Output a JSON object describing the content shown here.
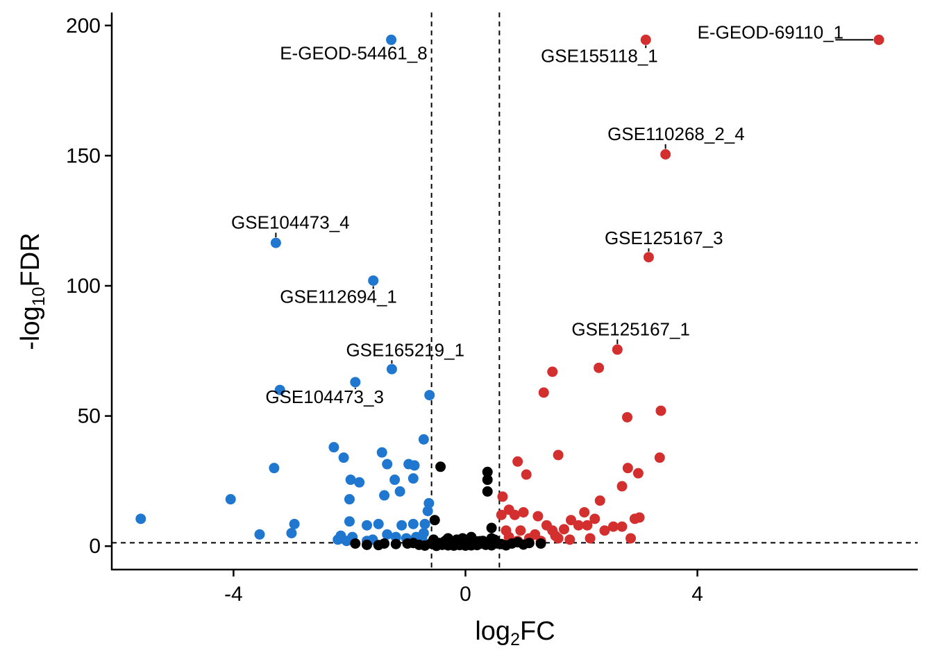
{
  "chart_data": {
    "type": "scatter",
    "xlabel_base": "log",
    "xlabel_sub": "2",
    "xlabel_tail": "FC",
    "ylabel_lead": "-log",
    "ylabel_sub": "10",
    "ylabel_tail": "FDR",
    "xlim": [
      -6.1,
      7.8
    ],
    "ylim": [
      -9,
      205
    ],
    "x_ticks": [
      -4,
      0,
      4
    ],
    "x_tick_labels": [
      "-4",
      "0",
      "4"
    ],
    "y_ticks": [
      0,
      50,
      100,
      150,
      200
    ],
    "y_tick_labels": [
      "0",
      "50",
      "100",
      "150",
      "200"
    ],
    "vlines": [
      -0.585,
      0.585
    ],
    "hline": 1.3,
    "colors": {
      "down": "#1f77d0",
      "up": "#d32f2f",
      "ns": "#000000"
    },
    "series": [
      {
        "group": "down",
        "points": [
          [
            -1.28,
            194.5
          ],
          [
            -3.27,
            116.5
          ],
          [
            -1.59,
            102
          ],
          [
            -1.27,
            68
          ],
          [
            -1.9,
            63
          ],
          [
            -3.2,
            60
          ],
          [
            -0.62,
            58
          ],
          [
            -0.72,
            41
          ],
          [
            -2.27,
            38
          ],
          [
            -1.44,
            36
          ],
          [
            -2.1,
            34
          ],
          [
            -1.35,
            31.5
          ],
          [
            -0.98,
            31.5
          ],
          [
            -0.88,
            31
          ],
          [
            -3.3,
            30
          ],
          [
            -1.22,
            25.5
          ],
          [
            -0.9,
            26
          ],
          [
            -1.98,
            25.5
          ],
          [
            -1.83,
            24.5
          ],
          [
            -1.13,
            21
          ],
          [
            -1.4,
            19.5
          ],
          [
            -2.0,
            18
          ],
          [
            -4.05,
            18
          ],
          [
            -0.63,
            16.5
          ],
          [
            -0.65,
            13.5
          ],
          [
            -5.6,
            10.5
          ],
          [
            -2.0,
            9.5
          ],
          [
            -2.95,
            8.5
          ],
          [
            -1.5,
            8.5
          ],
          [
            -1.1,
            8
          ],
          [
            -1.7,
            8
          ],
          [
            -0.9,
            8.5
          ],
          [
            -0.7,
            8.5
          ],
          [
            -3.55,
            4.5
          ],
          [
            -3.0,
            5
          ],
          [
            -2.2,
            2.5
          ],
          [
            -1.95,
            3.5
          ],
          [
            -1.2,
            3.5
          ],
          [
            -0.85,
            3.5
          ],
          [
            -1.7,
            2
          ],
          [
            -1.02,
            3
          ],
          [
            -2.15,
            4
          ],
          [
            -0.72,
            5
          ],
          [
            -1.35,
            4.5
          ],
          [
            -1.6,
            2.5
          ],
          [
            -0.75,
            3
          ],
          [
            -2.05,
            2
          ]
        ]
      },
      {
        "group": "up",
        "points": [
          [
            7.13,
            194.5
          ],
          [
            3.11,
            194.5
          ],
          [
            3.45,
            150.5
          ],
          [
            3.16,
            111
          ],
          [
            2.62,
            75.5
          ],
          [
            2.3,
            68.5
          ],
          [
            1.5,
            67
          ],
          [
            1.35,
            59
          ],
          [
            3.37,
            52
          ],
          [
            2.79,
            49.5
          ],
          [
            1.6,
            35
          ],
          [
            3.35,
            34
          ],
          [
            0.9,
            32.5
          ],
          [
            2.8,
            30
          ],
          [
            2.98,
            28
          ],
          [
            1.05,
            27.5
          ],
          [
            2.7,
            23
          ],
          [
            0.64,
            19
          ],
          [
            2.32,
            17.5
          ],
          [
            0.62,
            12
          ],
          [
            0.75,
            14
          ],
          [
            0.85,
            12
          ],
          [
            1.0,
            13
          ],
          [
            2.05,
            13
          ],
          [
            1.25,
            11.5
          ],
          [
            1.82,
            10
          ],
          [
            2.23,
            10.5
          ],
          [
            2.92,
            10.5
          ],
          [
            3.0,
            11
          ],
          [
            2.85,
            3
          ],
          [
            2.15,
            3
          ],
          [
            2.4,
            6
          ],
          [
            2.55,
            7.5
          ],
          [
            1.95,
            8
          ],
          [
            1.4,
            8
          ],
          [
            1.7,
            6.5
          ],
          [
            1.55,
            4
          ],
          [
            1.2,
            4.5
          ],
          [
            0.95,
            6
          ],
          [
            0.75,
            3.5
          ],
          [
            0.7,
            6
          ],
          [
            1.3,
            2
          ],
          [
            1.8,
            2.5
          ],
          [
            1.6,
            3
          ],
          [
            2.1,
            8
          ],
          [
            2.7,
            7.5
          ],
          [
            0.9,
            2
          ],
          [
            1.1,
            3
          ],
          [
            1.5,
            6
          ]
        ]
      },
      {
        "group": "ns",
        "points": [
          [
            -0.43,
            30.5
          ],
          [
            0.38,
            28.5
          ],
          [
            0.38,
            25.5
          ],
          [
            0.38,
            21
          ],
          [
            -0.53,
            10
          ],
          [
            0.45,
            7
          ],
          [
            -1.9,
            1
          ],
          [
            -1.7,
            0.5
          ],
          [
            -1.4,
            1
          ],
          [
            -1.2,
            0.8
          ],
          [
            -1.0,
            1
          ],
          [
            -0.8,
            0.5
          ],
          [
            -0.6,
            1
          ],
          [
            -0.55,
            2.5
          ],
          [
            -0.45,
            1.2
          ],
          [
            -0.4,
            0.5
          ],
          [
            -0.35,
            2
          ],
          [
            -0.3,
            0.3
          ],
          [
            -0.25,
            1.5
          ],
          [
            -0.2,
            0.2
          ],
          [
            -0.15,
            0.8
          ],
          [
            -0.1,
            0.4
          ],
          [
            -0.05,
            1
          ],
          [
            0.0,
            0.2
          ],
          [
            0.05,
            0.6
          ],
          [
            0.1,
            0.3
          ],
          [
            0.15,
            1.2
          ],
          [
            0.2,
            0.4
          ],
          [
            0.25,
            0.9
          ],
          [
            0.3,
            2
          ],
          [
            0.35,
            0.5
          ],
          [
            0.4,
            1.5
          ],
          [
            0.45,
            0.3
          ],
          [
            0.5,
            2.5
          ],
          [
            0.55,
            1
          ],
          [
            0.62,
            0.8
          ],
          [
            0.8,
            1
          ],
          [
            1.0,
            0.6
          ],
          [
            1.3,
            1
          ],
          [
            -0.7,
            0.2
          ],
          [
            -0.9,
            1.2
          ],
          [
            -0.3,
            3
          ],
          [
            0.1,
            3.5
          ],
          [
            -0.15,
            2.5
          ],
          [
            0.45,
            3
          ],
          [
            -1.5,
            0.4
          ],
          [
            0.9,
            1.5
          ],
          [
            0.2,
            1.8
          ],
          [
            -0.5,
            0.1
          ],
          [
            0.7,
            0.3
          ],
          [
            1.1,
            1.2
          ],
          [
            -0.05,
            3
          ],
          [
            0.25,
            1.9
          ],
          [
            -0.2,
            1
          ]
        ]
      }
    ],
    "annotations": [
      {
        "text": "E-GEOD-54461_8",
        "pt": [
          -1.28,
          194.5
        ],
        "lx": -3.2,
        "ly": 187,
        "anchor": "start"
      },
      {
        "text": "GSE155118_1",
        "pt": [
          3.11,
          194.5
        ],
        "lx": 1.3,
        "ly": 186,
        "anchor": "start"
      },
      {
        "text": "E-GEOD-69110_1",
        "pt": [
          7.13,
          194.5
        ],
        "lx": 4.0,
        "ly": 195,
        "anchor": "start"
      },
      {
        "text": "GSE110268_2_4",
        "pt": [
          3.45,
          150.5
        ],
        "lx": 2.45,
        "ly": 156,
        "anchor": "start"
      },
      {
        "text": "GSE104473_4",
        "pt": [
          -3.27,
          116.5
        ],
        "lx": -4.04,
        "ly": 122,
        "anchor": "start"
      },
      {
        "text": "GSE125167_3",
        "pt": [
          3.16,
          111
        ],
        "lx": 2.4,
        "ly": 116,
        "anchor": "start"
      },
      {
        "text": "GSE112694_1",
        "pt": [
          -1.59,
          102
        ],
        "lx": -3.2,
        "ly": 93.5,
        "anchor": "start"
      },
      {
        "text": "GSE125167_1",
        "pt": [
          2.62,
          75.5
        ],
        "lx": 1.83,
        "ly": 81,
        "anchor": "start"
      },
      {
        "text": "GSE165219_1",
        "pt": [
          -1.27,
          68
        ],
        "lx": -2.06,
        "ly": 73,
        "anchor": "start"
      },
      {
        "text": "GSE104473_3",
        "pt": [
          -1.9,
          63
        ],
        "lx": -3.45,
        "ly": 55,
        "anchor": "start"
      }
    ]
  }
}
